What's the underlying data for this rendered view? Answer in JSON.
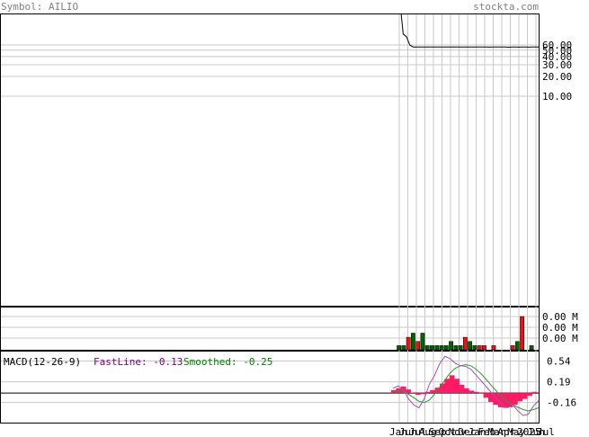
{
  "header": {
    "symbol": "Symbol: AILIO",
    "site": "stockta.com"
  },
  "chart_data": [
    {
      "type": "line",
      "panel": "price",
      "y_scale": "log",
      "y_tick_labels": [
        "60.00",
        "50.00",
        "40.00",
        "30.00",
        "20.00",
        "10.00"
      ],
      "series": [
        {
          "values": [
            100,
            95,
            88,
            80,
            60,
            56,
            56,
            56,
            56,
            56,
            56,
            56,
            56,
            56,
            56,
            56,
            56,
            56,
            56,
            56,
            56,
            56,
            56,
            56,
            56,
            56,
            56,
            56,
            55.6,
            56,
            55.8,
            56,
            56,
            56,
            55.5,
            56,
            56,
            55.6,
            56,
            56,
            55.7,
            56,
            56,
            56
          ]
        }
      ],
      "colors": {
        "line": "#000000",
        "grid": "#c8c8c8"
      }
    },
    {
      "type": "bar",
      "panel": "volume",
      "y_tick_labels": [
        "0.00 M",
        "0.00 M",
        "0.00 M"
      ],
      "values": [
        1,
        1,
        3,
        4,
        2,
        4,
        1,
        1,
        1,
        1,
        1,
        2,
        1,
        1,
        3,
        2,
        1,
        1,
        1,
        0,
        1,
        0,
        0,
        0,
        1,
        2,
        8,
        0,
        1,
        0
      ],
      "up": [
        1,
        1,
        0,
        1,
        0,
        1,
        1,
        1,
        1,
        1,
        1,
        1,
        1,
        1,
        0,
        1,
        1,
        0,
        0,
        1,
        0,
        1,
        1,
        1,
        0,
        1,
        0,
        1,
        1,
        1
      ],
      "colors": {
        "up": "#006400",
        "down": "#ee1111"
      }
    },
    {
      "type": "bar",
      "panel": "macd",
      "title": "MACD(12-26-9)",
      "fastline_label": "FastLine: -0.13",
      "smoothed_label": "Smoothed: -0.25",
      "y_tick_labels": [
        "0.54",
        "0.19",
        "-0.16"
      ],
      "y_tick_values": [
        0.54,
        0.19,
        -0.16
      ],
      "ylim": [
        -0.5,
        0.7
      ],
      "histogram": [
        0.05,
        0.08,
        0.11,
        0.06,
        0.01,
        -0.03,
        -0.02,
        0.02,
        0.05,
        0.09,
        0.16,
        0.24,
        0.3,
        0.24,
        0.14,
        0.08,
        0.04,
        0.02,
        -0.01,
        -0.08,
        -0.15,
        -0.2,
        -0.24,
        -0.25,
        -0.24,
        -0.2,
        -0.14,
        -0.1,
        -0.05,
        0.02
      ],
      "fastline": [
        0.08,
        0.12,
        0.06,
        -0.1,
        -0.2,
        -0.25,
        -0.1,
        0.15,
        0.3,
        0.5,
        0.62,
        0.58,
        0.5,
        0.46,
        0.45,
        0.4,
        0.3,
        0.2,
        0.1,
        0.0,
        -0.1,
        -0.2,
        -0.25,
        -0.2,
        -0.3,
        -0.38,
        -0.36,
        -0.22,
        -0.13
      ],
      "smoothed": [
        0.02,
        0.04,
        0.03,
        -0.02,
        -0.08,
        -0.14,
        -0.16,
        -0.12,
        -0.02,
        0.1,
        0.22,
        0.34,
        0.42,
        0.46,
        0.48,
        0.46,
        0.4,
        0.32,
        0.22,
        0.12,
        0.02,
        -0.07,
        -0.15,
        -0.2,
        -0.24,
        -0.28,
        -0.3,
        -0.28,
        -0.25
      ],
      "colors": {
        "histogram": "#ff1a66",
        "fastline": "#a050c0",
        "smoothed": "#2c9c2c",
        "fastlabel": "#800080",
        "smoothlabel": "#008000"
      }
    }
  ],
  "x_axis": {
    "labels": [
      "Jan",
      "Jun",
      "Jul",
      "Aug",
      "Sep",
      "Oct",
      "Nov",
      "Dec",
      "Jan",
      "Feb",
      "Mar",
      "Apr",
      "May",
      "2025",
      "Jun",
      "Jul"
    ]
  }
}
